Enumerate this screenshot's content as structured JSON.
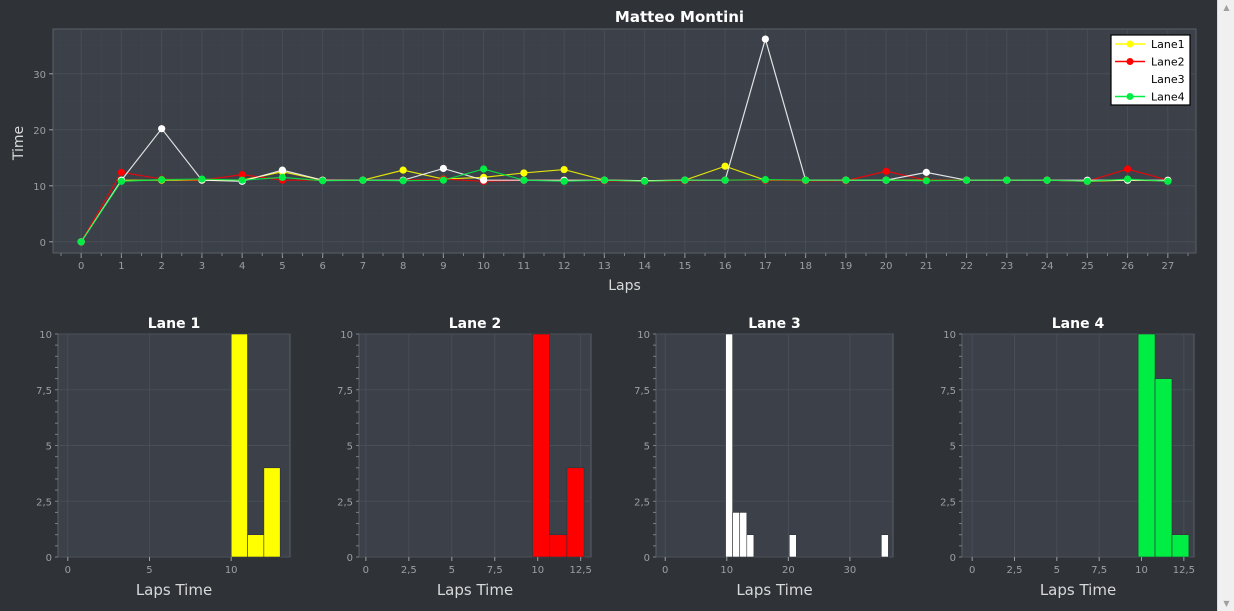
{
  "window": {
    "title": "Matteo Montini"
  },
  "colors": {
    "background": "#2f3338",
    "plot_area": "#3b4049",
    "grid": "#4a4f58",
    "lane1": "#ffff00",
    "lane2": "#ff0000",
    "lane3": "#ffffff",
    "lane4": "#00ee44"
  },
  "chart_data": [
    {
      "type": "line",
      "title": "Matteo Montini",
      "xlabel": "Laps",
      "ylabel": "Time",
      "x": [
        0,
        1,
        2,
        3,
        4,
        5,
        6,
        7,
        8,
        9,
        10,
        11,
        12,
        13,
        14,
        15,
        16,
        17,
        18,
        19,
        20,
        21,
        22,
        23,
        24,
        25,
        26,
        27
      ],
      "xlim": [
        -0.7,
        27.7
      ],
      "ylim": [
        -2,
        38
      ],
      "yticks": [
        0,
        10,
        20,
        30
      ],
      "grid": true,
      "legend_position": "top-right",
      "series": [
        {
          "name": "Lane1",
          "color": "#ffff00",
          "values": [
            0,
            11,
            11,
            11,
            11,
            12.5,
            11,
            11,
            12.8,
            11.2,
            11.5,
            12.3,
            12.9,
            11,
            10.9,
            11,
            13.5,
            11,
            11,
            11,
            11,
            11,
            11,
            11,
            11,
            10.8,
            11,
            10.9
          ]
        },
        {
          "name": "Lane2",
          "color": "#ff0000",
          "values": [
            0,
            12.4,
            11.2,
            11,
            12,
            11,
            11,
            11,
            11,
            11.2,
            10.8,
            11,
            11,
            10.9,
            10.8,
            10.9,
            11,
            11,
            10.9,
            10.9,
            12.6,
            11,
            11,
            11,
            11,
            10.8,
            13,
            11
          ]
        },
        {
          "name": "Lane3",
          "color": "#ffffff",
          "values": [
            0,
            11,
            20.2,
            11,
            10.8,
            12.8,
            11,
            11,
            11,
            13.1,
            11,
            11,
            11,
            11,
            10.9,
            11,
            11,
            36.2,
            11,
            11,
            11,
            12.4,
            11,
            11,
            11,
            11,
            11,
            11
          ]
        },
        {
          "name": "Lane4",
          "color": "#00ee44",
          "values": [
            0,
            10.8,
            11.1,
            11.2,
            11,
            11.5,
            10.9,
            11,
            10.9,
            11,
            13,
            11,
            10.8,
            11,
            10.8,
            11,
            11,
            11.1,
            11,
            11,
            11,
            10.9,
            11,
            11,
            11,
            10.8,
            11.2,
            10.8
          ]
        }
      ]
    },
    {
      "type": "bar",
      "title": "Lane 1",
      "xlabel": "Laps Time",
      "color": "#ffff00",
      "xlim": [
        -0.6,
        13.6
      ],
      "ylim": [
        0,
        10
      ],
      "xticks": [
        0,
        5,
        10
      ],
      "xtick_labels": [
        "0",
        "5",
        "10"
      ],
      "yticks": [
        0,
        2.5,
        5,
        7.5,
        10
      ],
      "ytick_labels": [
        "0",
        "2,5",
        "5",
        "7,5",
        "10"
      ],
      "bin_edges": [
        10,
        11,
        12,
        13
      ],
      "values": [
        10,
        1,
        4
      ]
    },
    {
      "type": "bar",
      "title": "Lane 2",
      "xlabel": "Laps Time",
      "color": "#ff0000",
      "xlim": [
        -0.4,
        13.1
      ],
      "ylim": [
        0,
        10
      ],
      "xticks": [
        0,
        2.5,
        5,
        7.5,
        10,
        12.5
      ],
      "xtick_labels": [
        "0",
        "2,5",
        "5",
        "7,5",
        "10",
        "12,5"
      ],
      "yticks": [
        0,
        2.5,
        5,
        7.5,
        10
      ],
      "ytick_labels": [
        "0",
        "2,5",
        "5",
        "7,5",
        "10"
      ],
      "bin_edges": [
        9.7,
        10.7,
        11.7,
        12.7
      ],
      "values": [
        10,
        1,
        4
      ]
    },
    {
      "type": "bar",
      "title": "Lane 3",
      "xlabel": "Laps Time",
      "color": "#ffffff",
      "xlim": [
        -1.5,
        37
      ],
      "ylim": [
        0,
        10
      ],
      "xticks": [
        0,
        10,
        20,
        30
      ],
      "xtick_labels": [
        "0",
        "10",
        "20",
        "30"
      ],
      "yticks": [
        0,
        2.5,
        5,
        7.5,
        10
      ],
      "ytick_labels": [
        "0",
        "2,5",
        "5",
        "7,5",
        "10"
      ],
      "bin_edges": [
        9.8,
        10.95,
        12.1,
        13.25,
        14.4,
        15.55,
        16.7,
        17.85,
        19.0,
        20.15,
        21.3,
        22.45,
        23.6,
        24.75,
        25.9,
        27.05,
        28.2,
        29.35,
        30.5,
        31.65,
        32.8,
        33.95,
        35.1,
        36.25
      ],
      "values": [
        10,
        2,
        2,
        1,
        0,
        0,
        0,
        0,
        0,
        1,
        0,
        0,
        0,
        0,
        0,
        0,
        0,
        0,
        0,
        0,
        0,
        0,
        1
      ]
    },
    {
      "type": "bar",
      "title": "Lane 4",
      "xlabel": "Laps Time",
      "color": "#00ee44",
      "xlim": [
        -0.6,
        13.1
      ],
      "ylim": [
        0,
        10
      ],
      "xticks": [
        0,
        2.5,
        5,
        7.5,
        10,
        12.5
      ],
      "xtick_labels": [
        "0",
        "2,5",
        "5",
        "7,5",
        "10",
        "12,5"
      ],
      "yticks": [
        0,
        2.5,
        5,
        7.5,
        10
      ],
      "ytick_labels": [
        "0",
        "2,5",
        "5",
        "7,5",
        "10"
      ],
      "bin_edges": [
        9.8,
        10.8,
        11.8,
        12.8
      ],
      "values": [
        10,
        8,
        1
      ]
    }
  ]
}
